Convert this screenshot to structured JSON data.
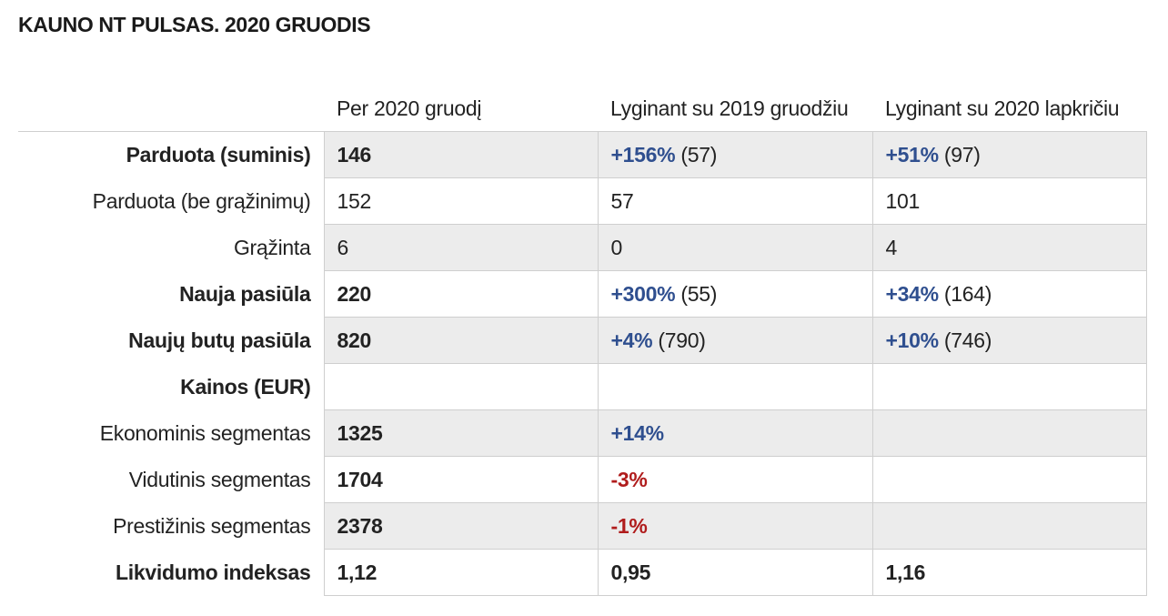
{
  "title": "KAUNO NT PULSAS. 2020 GRUODIS",
  "headers": [
    "",
    "Per 2020 gruodį",
    "Lyginant su 2019 gruodžiu",
    "Lyginant su 2020 lapkričiu"
  ],
  "rows": [
    {
      "label": "Parduota (suminis)",
      "value": "146",
      "cmp_year": {
        "change": "+156%",
        "ref": "(57)"
      },
      "cmp_month": {
        "change": "+51%",
        "ref": "(97)"
      }
    },
    {
      "label": "Parduota (be grąžinimų)",
      "value": "152",
      "cmp_year": {
        "change": "57"
      },
      "cmp_month": {
        "change": "101"
      }
    },
    {
      "label": "Grąžinta",
      "value": "6",
      "cmp_year": {
        "change": "0"
      },
      "cmp_month": {
        "change": "4"
      }
    },
    {
      "label": "Nauja pasiūla",
      "value": "220",
      "cmp_year": {
        "change": "+300%",
        "ref": "(55)"
      },
      "cmp_month": {
        "change": "+34%",
        "ref": "(164)"
      }
    },
    {
      "label": "Naujų butų pasiūla",
      "value": "820",
      "cmp_year": {
        "change": "+4%",
        "ref": "(790)"
      },
      "cmp_month": {
        "change": "+10%",
        "ref": "(746)"
      }
    },
    {
      "label": "Kainos (EUR)",
      "value": "",
      "cmp_year": {
        "change": ""
      },
      "cmp_month": {
        "change": ""
      }
    },
    {
      "label": "Ekonominis segmentas",
      "value": "1325",
      "cmp_year": {
        "change": "+14%"
      },
      "cmp_month": {
        "change": ""
      }
    },
    {
      "label": "Vidutinis segmentas",
      "value": "1704",
      "cmp_year": {
        "change": "-3%"
      },
      "cmp_month": {
        "change": ""
      }
    },
    {
      "label": "Prestižinis segmentas",
      "value": "2378",
      "cmp_year": {
        "change": "-1%"
      },
      "cmp_month": {
        "change": ""
      }
    },
    {
      "label": "Likvidumo indeksas",
      "value": "1,12",
      "cmp_year": {
        "change": "0,95"
      },
      "cmp_month": {
        "change": "1,16"
      }
    }
  ],
  "colors": {
    "positive": "#2f4f8f",
    "negative": "#b01c1c",
    "shaded_row": "#ececec",
    "border": "#cfcfcf"
  }
}
